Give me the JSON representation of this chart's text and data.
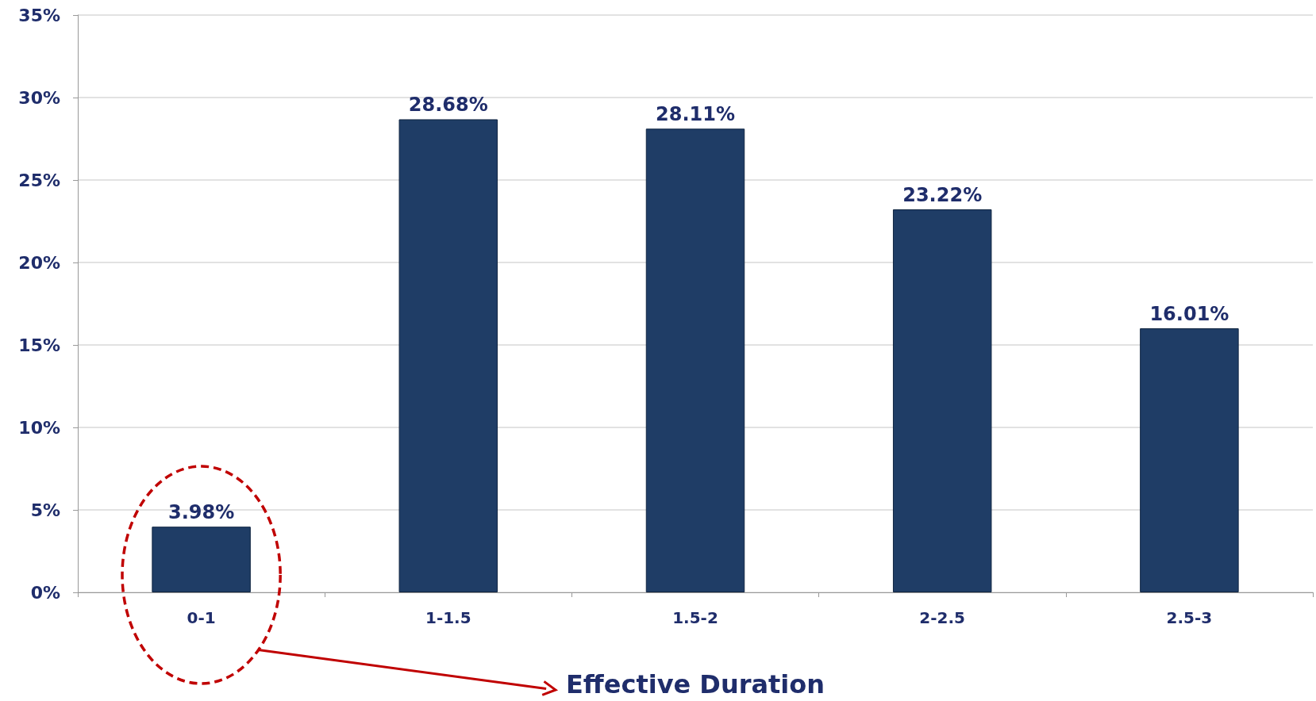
{
  "chart_data": {
    "type": "bar",
    "xlabel": "Effective Duration",
    "categories": [
      "0-1",
      "1-1.5",
      "1.5-2",
      "2-2.5",
      "2.5-3"
    ],
    "values": [
      3.98,
      28.68,
      28.11,
      23.22,
      16.01
    ],
    "value_labels": [
      "3.98%",
      "28.68%",
      "28.11%",
      "23.22%",
      "16.01%"
    ],
    "color": "#1f3d66",
    "ylim": [
      0,
      35
    ],
    "yticks": [
      {
        "value": 0,
        "label": "0%"
      },
      {
        "value": 5,
        "label": "5%"
      },
      {
        "value": 10,
        "label": "10%"
      },
      {
        "value": 15,
        "label": "15%"
      },
      {
        "value": 20,
        "label": "20%"
      },
      {
        "value": 25,
        "label": "25%"
      },
      {
        "value": 30,
        "label": "30%"
      },
      {
        "value": 35,
        "label": "35%"
      }
    ],
    "grid": "y"
  }
}
